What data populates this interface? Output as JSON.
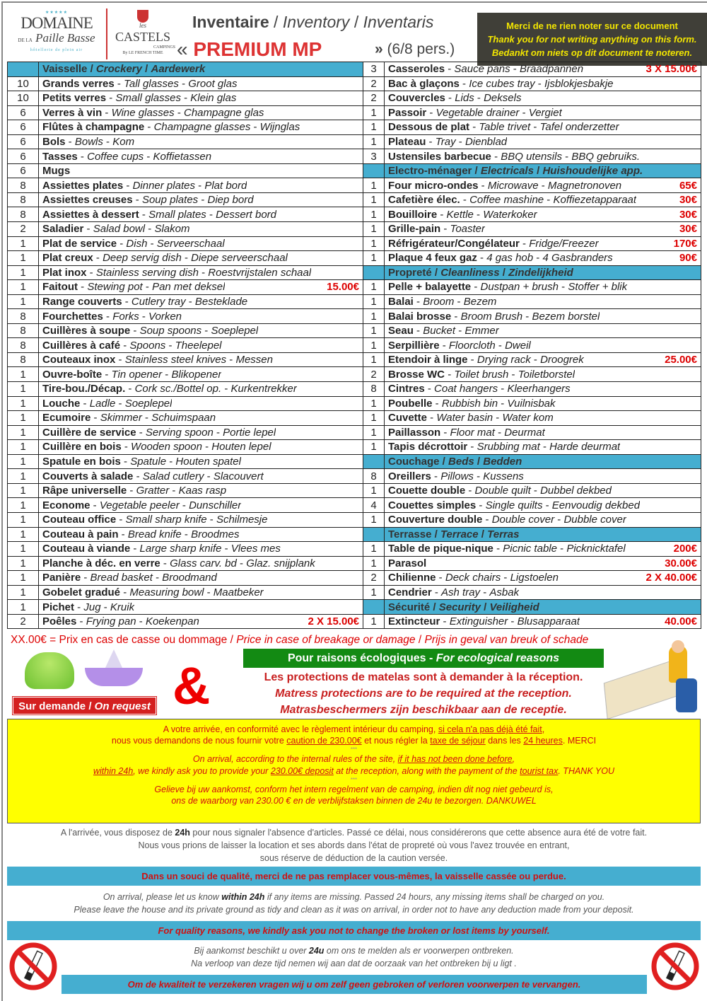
{
  "header": {
    "logo_domaine": {
      "stars": "★★★★★",
      "line1": "DOMAINE",
      "line2a": "DE LA",
      "line2b": "Paille Basse",
      "sub": "hôtellerie de plein air"
    },
    "logo_castels": {
      "les": "les",
      "name": "CASTELS",
      "campings": "CAMPINGS",
      "by": "By LE FRENCH TIME"
    },
    "title_fr": "Inventaire",
    "title_en": "Inventory",
    "title_nl": "Inventaris",
    "open_quote": "«",
    "product": "PREMIUM MP",
    "close_quote": "»",
    "persons": "(6/8 pers.)",
    "notice": [
      "Merci de ne rien noter sur ce document",
      "Thank you for not writing anything on this form.",
      "Bedankt om niets op dit document te noteren."
    ]
  },
  "colors": {
    "section": "#45aed0",
    "price": "#dd0000",
    "eco": "#138a13",
    "yellow": "#ffff00",
    "notice_bg": "#403f38"
  },
  "inventory": {
    "left": [
      {
        "section": [
          "Vaisselle",
          "Crockery",
          "Aardewerk"
        ]
      },
      {
        "q": "10",
        "fr": "Grands verres",
        "en": "Tall glasses",
        "nl": "Groot glas"
      },
      {
        "q": "10",
        "fr": "Petits verres",
        "en": "Small glasses",
        "nl": "Klein glas"
      },
      {
        "q": "6",
        "fr": "Verres à vin",
        "en": "Wine glasses",
        "nl": "Champagne glas"
      },
      {
        "q": "6",
        "fr": "Flûtes à champagne",
        "en": "Champagne glasses",
        "nl": "Wijnglas"
      },
      {
        "q": "6",
        "fr": "Bols",
        "en": "Bowls",
        "nl": "Kom"
      },
      {
        "q": "6",
        "fr": "Tasses",
        "en": "Coffee cups",
        "nl": "Koffietassen"
      },
      {
        "q": "6",
        "fr": "Mugs"
      },
      {
        "q": "8",
        "fr": "Assiettes plates",
        "en": "Dinner plates",
        "nl": "Plat bord"
      },
      {
        "q": "8",
        "fr": "Assiettes creuses",
        "en": "Soup plates",
        "nl": "Diep bord"
      },
      {
        "q": "8",
        "fr": "Assiettes à dessert",
        "en": "Small plates",
        "nl": "Dessert bord"
      },
      {
        "q": "2",
        "fr": "Saladier",
        "en": "Salad bowl",
        "nl": "Slakom"
      },
      {
        "q": "1",
        "fr": "Plat de service",
        "en": "Dish",
        "nl": "Serveerschaal"
      },
      {
        "q": "1",
        "fr": "Plat creux",
        "en": "Deep servig dish",
        "nl": "Diepe serveerschaal"
      },
      {
        "q": "1",
        "fr": "Plat inox",
        "en": "Stainless serving dish",
        "nl": "Roestvrijstalen schaal"
      },
      {
        "q": "1",
        "fr": "Faitout",
        "en": "Stewing pot",
        "nl": "Pan met deksel",
        "price": "15.00€"
      },
      {
        "q": "1",
        "fr": "Range couverts",
        "en": "Cutlery tray",
        "nl": "Besteklade"
      },
      {
        "q": "8",
        "fr": "Fourchettes",
        "en": "Forks",
        "nl": "Vorken"
      },
      {
        "q": "8",
        "fr": "Cuillères à soupe",
        "en": "Soup spoons",
        "nl": "Soeplepel"
      },
      {
        "q": "8",
        "fr": "Cuillères à café",
        "en": "Spoons",
        "nl": "Theelepel"
      },
      {
        "q": "8",
        "fr": "Couteaux inox",
        "en": "Stainless steel knives",
        "nl": "Messen"
      },
      {
        "q": "1",
        "fr": "Ouvre-boîte",
        "en": "Tin opener",
        "nl": "Blikopener"
      },
      {
        "q": "1",
        "fr": "Tire-bou./Décap.",
        "en": "Cork sc./Bottel op.",
        "nl": "Kurkentrekker"
      },
      {
        "q": "1",
        "fr": "Louche",
        "en": "Ladle",
        "nl": "Soeplepel"
      },
      {
        "q": "1",
        "fr": "Ecumoire",
        "en": "Skimmer",
        "nl": "Schuimspaan"
      },
      {
        "q": "1",
        "fr": "Cuillère de service",
        "en": "Serving spoon",
        "nl": "Portie lepel"
      },
      {
        "q": "1",
        "fr": "Cuillère en bois",
        "en": "Wooden spoon",
        "nl": "Houten lepel"
      },
      {
        "q": "1",
        "fr": "Spatule en bois",
        "en": "Spatule",
        "nl": "Houten spatel"
      },
      {
        "q": "1",
        "fr": "Couverts à salade",
        "en": "Salad cutlery",
        "nl": "Slacouvert"
      },
      {
        "q": "1",
        "fr": "Râpe universelle",
        "en": "Gratter",
        "nl": "Kaas rasp"
      },
      {
        "q": "1",
        "fr": "Econome",
        "en": "Vegetable peeler",
        "nl": "Dunschiller"
      },
      {
        "q": "1",
        "fr": "Couteau office",
        "en": "Small sharp knife",
        "nl": "Schilmesje"
      },
      {
        "q": "1",
        "fr": "Couteau à pain",
        "en": "Bread knife",
        "nl": "Broodmes"
      },
      {
        "q": "1",
        "fr": "Couteau à viande",
        "en": "Large sharp knife",
        "nl": "Vlees mes"
      },
      {
        "q": "1",
        "fr": "Planche à déc. en verre",
        "en": "Glass carv. bd",
        "nl": "Glaz. snijplank"
      },
      {
        "q": "1",
        "fr": "Panière",
        "en": "Bread basket",
        "nl": "Broodmand"
      },
      {
        "q": "1",
        "fr": "Gobelet gradué",
        "en": "Measuring bowl",
        "nl": "Maatbeker"
      },
      {
        "q": "1",
        "fr": "Pichet",
        "en": "Jug",
        "nl": "Kruik"
      },
      {
        "q": "2",
        "fr": "Poêles",
        "en": "Frying pan",
        "nl": "Koekenpan",
        "price": "2 X 15.00€"
      }
    ],
    "right": [
      {
        "q": "3",
        "fr": "Casseroles",
        "en": "Sauce pans",
        "nl": "Braadpannen",
        "price": "3 X 15.00€"
      },
      {
        "q": "2",
        "fr": "Bac à glaçons",
        "en": "Ice cubes tray",
        "nl": "Ijsblokjesbakje"
      },
      {
        "q": "2",
        "fr": "Couvercles",
        "en": "Lids",
        "nl": "Deksels"
      },
      {
        "q": "1",
        "fr": "Passoir",
        "en": "Vegetable drainer",
        "nl": "Vergiet"
      },
      {
        "q": "1",
        "fr": "Dessous de plat",
        "en": "Table trivet",
        "nl": "Tafel onderzetter"
      },
      {
        "q": "1",
        "fr": "Plateau",
        "en": "Tray",
        "nl": "Dienblad"
      },
      {
        "q": "3",
        "fr": "Ustensiles barbecue",
        "en": "BBQ utensils",
        "nl": "BBQ gebruiks."
      },
      {
        "section": [
          "Electro-ménager",
          "Electricals",
          "Huishoudelijke app."
        ]
      },
      {
        "q": "1",
        "fr": "Four micro-ondes",
        "en": "Microwave",
        "nl": "Magnetronoven",
        "price": "65€"
      },
      {
        "q": "1",
        "fr": "Cafetière élec.",
        "en": "Coffee mashine",
        "nl": "Koffiezetapparaat",
        "price": "30€"
      },
      {
        "q": "1",
        "fr": "Bouilloire",
        "en": "Kettle",
        "nl": "Waterkoker",
        "price": "30€"
      },
      {
        "q": "1",
        "fr": "Grille-pain",
        "en": "Toaster",
        "price": "30€"
      },
      {
        "q": "1",
        "fr": "Réfrigérateur/Congélateur",
        "en": "Fridge/Freezer",
        "price": "170€"
      },
      {
        "q": "1",
        "fr": "Plaque 4 feux gaz",
        "en": "4 gas hob",
        "nl": "4 Gasbranders",
        "price": "90€"
      },
      {
        "section": [
          "Propreté",
          "Cleanliness",
          "Zindelijkheid"
        ]
      },
      {
        "q": "1",
        "fr": "Pelle + balayette",
        "en": "Dustpan + brush",
        "nl": "Stoffer + blik"
      },
      {
        "q": "1",
        "fr": "Balai",
        "en": "Broom",
        "nl": "Bezem"
      },
      {
        "q": "1",
        "fr": "Balai brosse",
        "en": "Broom Brush",
        "nl": "Bezem borstel"
      },
      {
        "q": "1",
        "fr": "Seau",
        "en": "Bucket",
        "nl": "Emmer"
      },
      {
        "q": "1",
        "fr": "Serpillière",
        "en": "Floorcloth",
        "nl": "Dweil"
      },
      {
        "q": "1",
        "fr": "Etendoir à linge",
        "en": "Drying rack",
        "nl": "Droogrek",
        "price": "25.00€"
      },
      {
        "q": "2",
        "fr": "Brosse WC",
        "en": "Toilet brush",
        "nl": "Toiletborstel"
      },
      {
        "q": "8",
        "fr": "Cintres",
        "en": "Coat hangers",
        "nl": "Kleerhangers"
      },
      {
        "q": "1",
        "fr": "Poubelle",
        "en": "Rubbish bin",
        "nl": "Vuilnisbak"
      },
      {
        "q": "1",
        "fr": "Cuvette",
        "en": "Water basin",
        "nl": "Water kom"
      },
      {
        "q": "1",
        "fr": "Paillasson",
        "en": "Floor mat",
        "nl": "Deurmat"
      },
      {
        "q": "1",
        "fr": "Tapis décrottoir",
        "en": "Srubbing mat",
        "nl": "Harde deurmat"
      },
      {
        "section": [
          "Couchage",
          "Beds",
          "Bedden"
        ]
      },
      {
        "q": "8",
        "fr": "Oreillers",
        "en": "Pillows",
        "nl": "Kussens"
      },
      {
        "q": "1",
        "fr": "Couette double",
        "en": "Double quilt",
        "nl": "Dubbel dekbed"
      },
      {
        "q": "4",
        "fr": "Couettes simples",
        "en": "Single quilts",
        "nl": "Eenvoudig dekbed"
      },
      {
        "q": "1",
        "fr": "Couverture double",
        "en": "Double cover",
        "nl": "Dubble cover"
      },
      {
        "section": [
          "Terrasse",
          "Terrace",
          "Terras"
        ]
      },
      {
        "q": "1",
        "fr": "Table de pique-nique",
        "en": "Picnic table",
        "nl": "Picknicktafel",
        "price": "200€"
      },
      {
        "q": "1",
        "fr": "Parasol",
        "price": "30.00€"
      },
      {
        "q": "2",
        "fr": "Chilienne",
        "en": "Deck chairs",
        "nl": "Ligstoelen",
        "price": "2 X 40.00€"
      },
      {
        "q": "1",
        "fr": "Cendrier",
        "en": "Ash tray",
        "nl": "Asbak"
      },
      {
        "section": [
          "Sécurité",
          "Security",
          "Veiligheid"
        ]
      },
      {
        "q": "1",
        "fr": "Extincteur",
        "en": "Extinguisher",
        "nl": "Blusapparaat",
        "price": "40.00€"
      }
    ]
  },
  "legend": {
    "fr": "XX.00€ = Prix en cas de casse ou dommage",
    "en": "Price in case of breakage or damage",
    "nl": "Prijs in geval van breuk of schade"
  },
  "on_request": {
    "fr": "Sur demande",
    "en": "On request"
  },
  "ampersand": "&",
  "eco": {
    "fr": "Pour raisons écologiques",
    "en": "For ecological reasons"
  },
  "matress": [
    "Les protections de matelas sont à demander à la réception.",
    "Matress protections are to be required at the reception.",
    "Matrasbeschermers zijn beschikbaar aan de receptie."
  ],
  "yellow_box": [
    {
      "italic": false,
      "segs": [
        {
          "t": "A votre arrivée, en conformité avec le règlement intérieur du camping, "
        },
        {
          "t": "si cela n'a pas déjà été fait",
          "u": true
        },
        {
          "t": ","
        }
      ]
    },
    {
      "italic": false,
      "segs": [
        {
          "t": "nous vous demandons de nous fournir votre "
        },
        {
          "t": "caution de 230.00€",
          "u": true
        },
        {
          "t": " et nous régler la "
        },
        {
          "t": "taxe de séjour",
          "u": true
        },
        {
          "t": " dans les "
        },
        {
          "t": "24 heures",
          "u": true
        },
        {
          "t": ". MERCI"
        }
      ]
    },
    {
      "stars": "***"
    },
    {
      "italic": true,
      "segs": [
        {
          "t": "On arrival, according to the internal rules of the site, "
        },
        {
          "t": "if it has not been done before",
          "u": true
        },
        {
          "t": ","
        }
      ]
    },
    {
      "italic": true,
      "segs": [
        {
          "t": "within 24h",
          "u": true
        },
        {
          "t": ", we kindly ask you to provide your "
        },
        {
          "t": "230.00€ deposit",
          "u": true
        },
        {
          "t": " at the reception, along with the payment of the "
        },
        {
          "t": "tourist tax",
          "u": true
        },
        {
          "t": ". THANK YOU"
        }
      ]
    },
    {
      "stars": "***"
    },
    {
      "italic": true,
      "segs": [
        {
          "t": "Gelieve bij uw aankomst, conform het intern regelment van de camping, indien dit nog niet gebeurd is,"
        }
      ]
    },
    {
      "italic": true,
      "segs": [
        {
          "t": "ons de waarborg van 230.00 € en de verblijfstaksen binnen de 24u te bezorgen. DANKUWEL"
        }
      ]
    }
  ],
  "fr_text": {
    "l1a": "A l'arrivée, vous disposez de ",
    "l1b": "24h",
    "l1c": " pour nous signaler l'absence d'articles. Passé ce délai, nous considérerons que cette absence aura été de votre fait.",
    "l2": "Nous vous prions de laisser la location et ses abords dans l'état de propreté où vous l'avez trouvée en entrant,",
    "l3": "sous réserve de déduction de la caution versée."
  },
  "fr_band": "Dans un souci de qualité, merci de ne pas remplacer vous-mêmes, la vaisselle cassée ou perdue.",
  "en_text": {
    "l1a": "On arrival, please let us know ",
    "l1b": "within 24h",
    "l1c": " if any items are missing. Passed 24 hours, any missing items shall be charged on you.",
    "l2": "Please leave the house and its private ground as tidy and clean as it was on arrival, in order not to have any deduction made from your deposit."
  },
  "en_band": "For quality reasons, we kindly ask you not to change the broken or lost items by yourself.",
  "nl_text": {
    "l1a": "Bij aankomst beschikt u over ",
    "l1b": "24u",
    "l1c": " om ons te melden als er voorwerpen ontbreken.",
    "l2": "Na verloop van deze tijd  nemen wij aan dat de oorzaak van het ontbreken bij u ligt ."
  },
  "nl_band": "Om de kwaliteit te verzekeren vragen wij u om zelf geen gebroken of verloren voorwerpen te vervangen.",
  "icons": [
    "salad-spinner-image",
    "juicer-image",
    "mattress-person-image",
    "no-smoking-icon"
  ]
}
